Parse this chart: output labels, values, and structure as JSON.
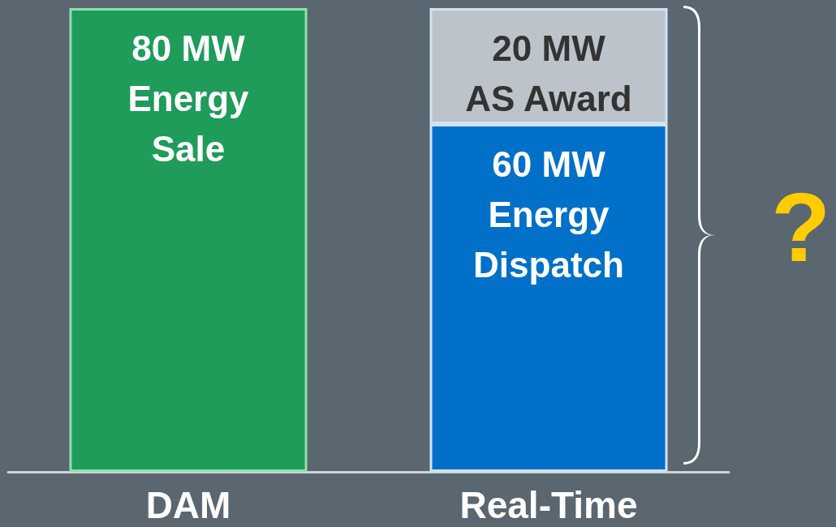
{
  "chart_data": {
    "type": "bar",
    "stacked": true,
    "categories": [
      "DAM",
      "Real-Time"
    ],
    "series": [
      {
        "colors": [
          "#1f9b5a",
          "#0070c8"
        ],
        "values": [
          80,
          60
        ],
        "value_labels": [
          "80 MW\nEnergy\nSale",
          "60 MW\nEnergy\nDispatch"
        ]
      },
      {
        "color": "#bcc3ca",
        "values": [
          null,
          20
        ],
        "value_labels": [
          null,
          "20 MW\nAS Award"
        ]
      }
    ],
    "annotations": [
      "?"
    ]
  }
}
